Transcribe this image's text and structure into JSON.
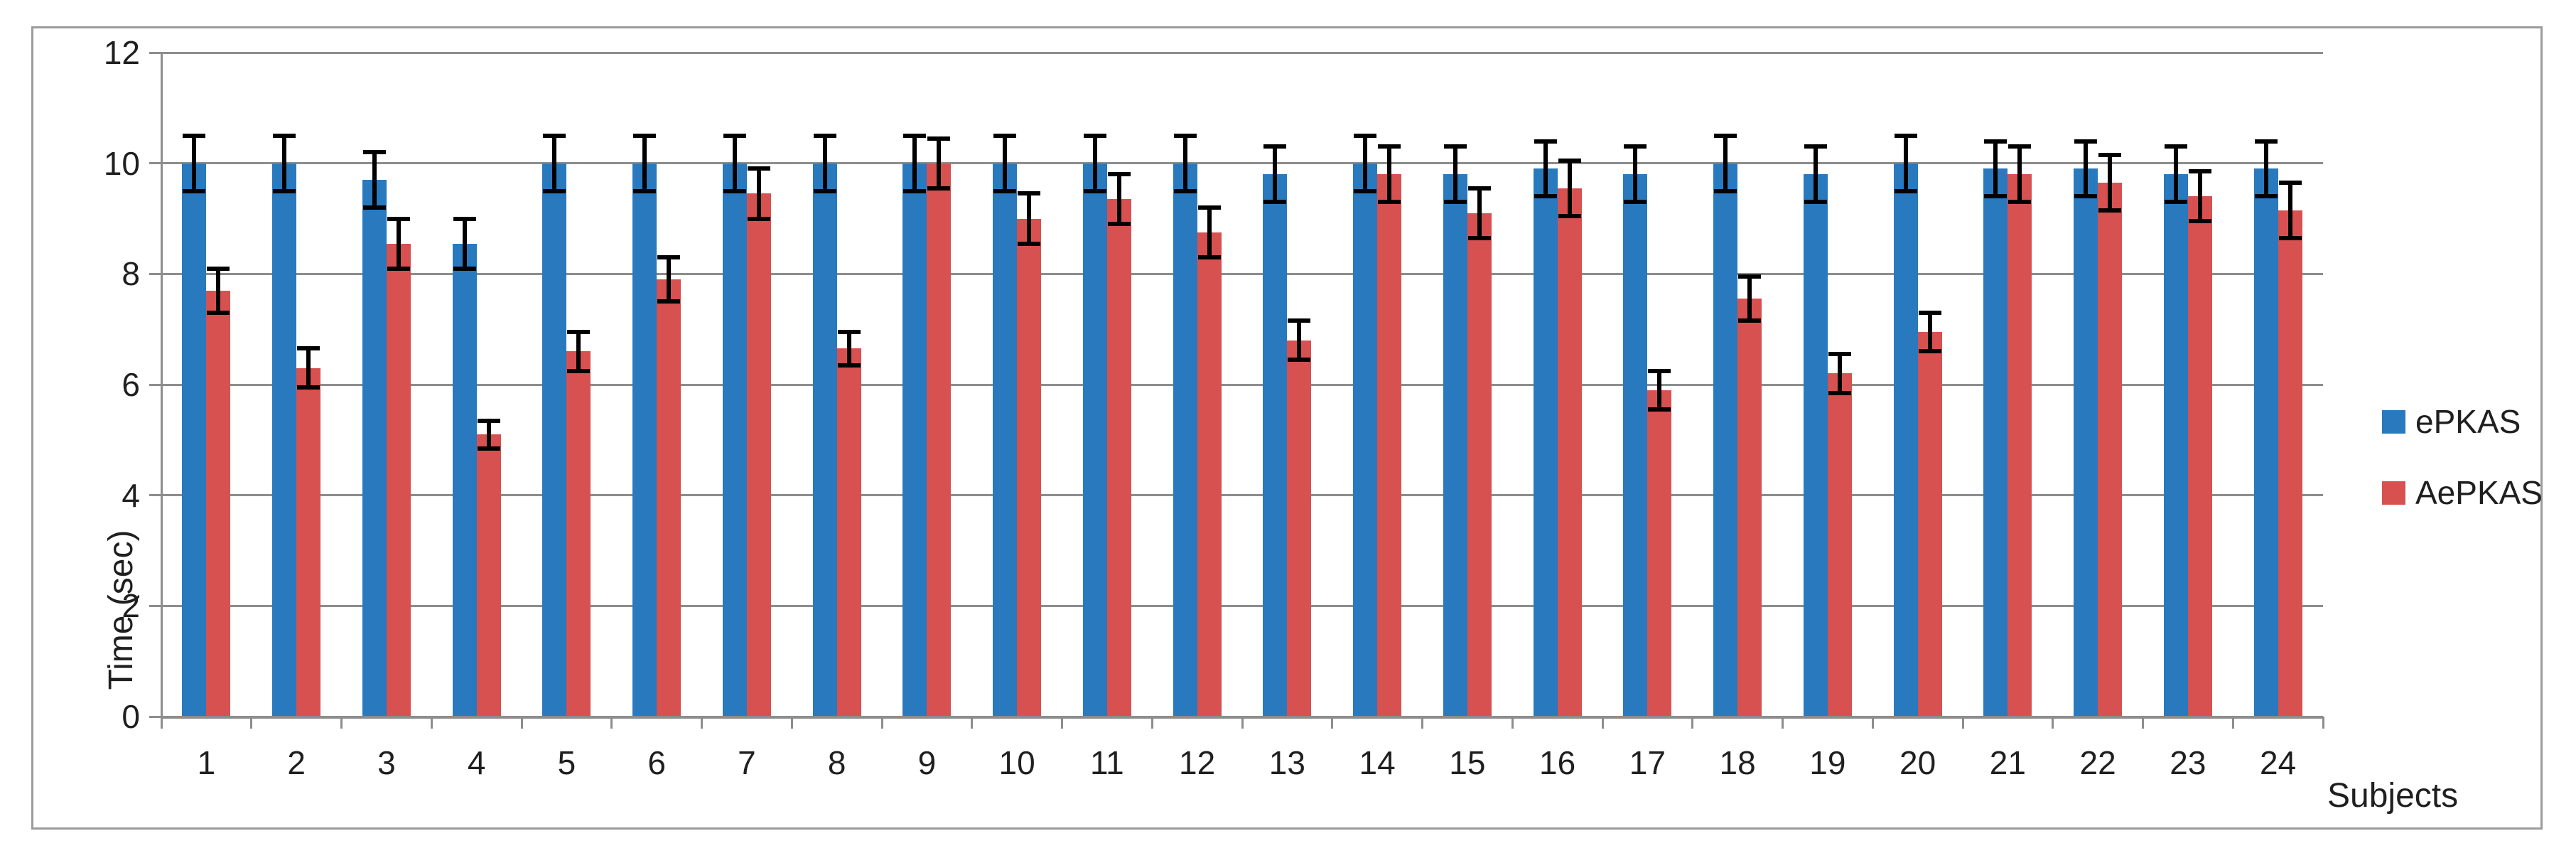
{
  "chart_data": {
    "type": "bar",
    "title": "",
    "xlabel": "Subjects",
    "ylabel": "Time (sec)",
    "ylim": [
      0,
      12
    ],
    "yticks": [
      0,
      2,
      4,
      6,
      8,
      10,
      12
    ],
    "grid": true,
    "legend_position": "right-outside",
    "categories": [
      "1",
      "2",
      "3",
      "4",
      "5",
      "6",
      "7",
      "8",
      "9",
      "10",
      "11",
      "12",
      "13",
      "14",
      "15",
      "16",
      "17",
      "18",
      "19",
      "20",
      "21",
      "22",
      "23",
      "24"
    ],
    "series": [
      {
        "name": "ePKAS",
        "color": "#2979BE",
        "values": [
          10.0,
          10.0,
          9.7,
          8.55,
          10.0,
          10.0,
          10.0,
          10.0,
          10.0,
          10.0,
          10.0,
          10.0,
          9.8,
          10.0,
          9.8,
          9.9,
          9.8,
          10.0,
          9.8,
          10.0,
          9.9,
          9.9,
          9.8,
          9.9
        ],
        "errors": [
          0.5,
          0.5,
          0.5,
          0.45,
          0.5,
          0.5,
          0.5,
          0.5,
          0.5,
          0.5,
          0.5,
          0.5,
          0.5,
          0.5,
          0.5,
          0.5,
          0.5,
          0.5,
          0.5,
          0.5,
          0.5,
          0.5,
          0.5,
          0.5
        ]
      },
      {
        "name": "AePKAS",
        "color": "#D75151",
        "values": [
          7.7,
          6.3,
          8.55,
          5.1,
          6.6,
          7.9,
          9.45,
          6.65,
          10.0,
          9.0,
          9.35,
          8.75,
          6.8,
          9.8,
          9.1,
          9.55,
          5.9,
          7.55,
          6.2,
          6.95,
          9.8,
          9.65,
          9.4,
          9.15
        ],
        "errors": [
          0.4,
          0.35,
          0.45,
          0.25,
          0.35,
          0.4,
          0.45,
          0.3,
          0.45,
          0.45,
          0.45,
          0.45,
          0.35,
          0.5,
          0.45,
          0.5,
          0.35,
          0.4,
          0.35,
          0.35,
          0.5,
          0.5,
          0.45,
          0.5
        ]
      }
    ],
    "error_bar_color": "#000000"
  },
  "colors": {
    "grid": "#8d8d8d",
    "axis": "#8d8d8d",
    "figure_border": "#9b9b9b",
    "text": "#1f1f1f",
    "background": "#ffffff"
  }
}
